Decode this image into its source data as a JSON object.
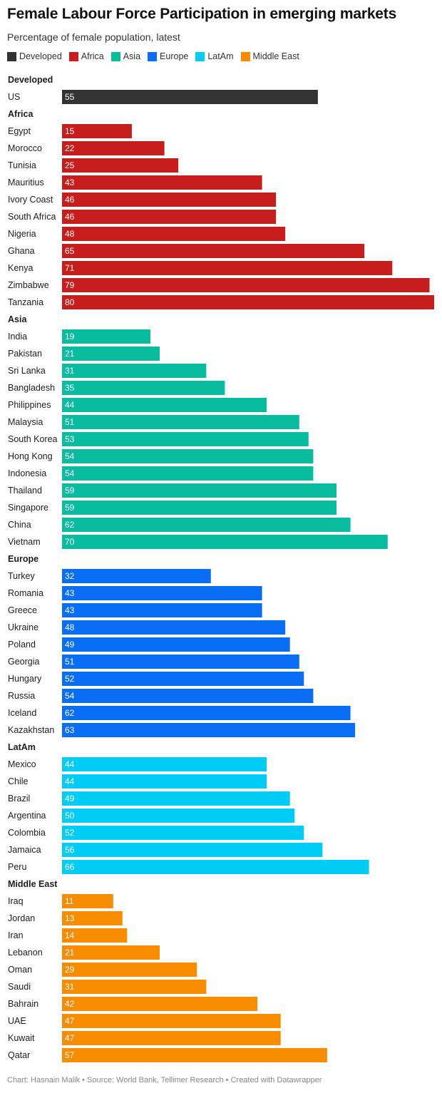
{
  "title": "Female Labour Force Participation in emerging markets",
  "subtitle": "Percentage of female population, latest",
  "footer": "Chart: Hasnain Malik • Source: World Bank, Tellimer Research • Created with Datawrapper",
  "legend": [
    {
      "name": "Developed",
      "color": "#333333"
    },
    {
      "name": "Africa",
      "color": "#c71e1d"
    },
    {
      "name": "Asia",
      "color": "#09bb9f"
    },
    {
      "name": "Europe",
      "color": "#0a6ef5"
    },
    {
      "name": "LatAm",
      "color": "#00ccf5"
    },
    {
      "name": "Middle East",
      "color": "#f78c00"
    }
  ],
  "chart_data": {
    "type": "bar",
    "orientation": "horizontal",
    "xlim": [
      0,
      80
    ],
    "grid": false,
    "legend_position": "top-left",
    "groups": [
      {
        "name": "Developed",
        "color": "#333333",
        "rows": [
          {
            "label": "US",
            "value": 55
          }
        ]
      },
      {
        "name": "Africa",
        "color": "#c71e1d",
        "rows": [
          {
            "label": "Egypt",
            "value": 15
          },
          {
            "label": "Morocco",
            "value": 22
          },
          {
            "label": "Tunisia",
            "value": 25
          },
          {
            "label": "Mauritius",
            "value": 43
          },
          {
            "label": "Ivory Coast",
            "value": 46
          },
          {
            "label": "South Africa",
            "value": 46
          },
          {
            "label": "Nigeria",
            "value": 48
          },
          {
            "label": "Ghana",
            "value": 65
          },
          {
            "label": "Kenya",
            "value": 71
          },
          {
            "label": "Zimbabwe",
            "value": 79
          },
          {
            "label": "Tanzania",
            "value": 80
          }
        ]
      },
      {
        "name": "Asia",
        "color": "#09bb9f",
        "rows": [
          {
            "label": "India",
            "value": 19
          },
          {
            "label": "Pakistan",
            "value": 21
          },
          {
            "label": "Sri Lanka",
            "value": 31
          },
          {
            "label": "Bangladesh",
            "value": 35
          },
          {
            "label": "Philippines",
            "value": 44
          },
          {
            "label": "Malaysia",
            "value": 51
          },
          {
            "label": "South Korea",
            "value": 53
          },
          {
            "label": "Hong Kong",
            "value": 54
          },
          {
            "label": "Indonesia",
            "value": 54
          },
          {
            "label": "Thailand",
            "value": 59
          },
          {
            "label": "Singapore",
            "value": 59
          },
          {
            "label": "China",
            "value": 62
          },
          {
            "label": "Vietnam",
            "value": 70
          }
        ]
      },
      {
        "name": "Europe",
        "color": "#0a6ef5",
        "rows": [
          {
            "label": "Turkey",
            "value": 32
          },
          {
            "label": "Romania",
            "value": 43
          },
          {
            "label": "Greece",
            "value": 43
          },
          {
            "label": "Ukraine",
            "value": 48
          },
          {
            "label": "Poland",
            "value": 49
          },
          {
            "label": "Georgia",
            "value": 51
          },
          {
            "label": "Hungary",
            "value": 52
          },
          {
            "label": "Russia",
            "value": 54
          },
          {
            "label": "Iceland",
            "value": 62
          },
          {
            "label": "Kazakhstan",
            "value": 63
          }
        ]
      },
      {
        "name": "LatAm",
        "color": "#00ccf5",
        "rows": [
          {
            "label": "Mexico",
            "value": 44
          },
          {
            "label": "Chile",
            "value": 44
          },
          {
            "label": "Brazil",
            "value": 49
          },
          {
            "label": "Argentina",
            "value": 50
          },
          {
            "label": "Colombia",
            "value": 52
          },
          {
            "label": "Jamaica",
            "value": 56
          },
          {
            "label": "Peru",
            "value": 66
          }
        ]
      },
      {
        "name": "Middle East",
        "color": "#f78c00",
        "rows": [
          {
            "label": "Iraq",
            "value": 11
          },
          {
            "label": "Jordan",
            "value": 13
          },
          {
            "label": "Iran",
            "value": 14
          },
          {
            "label": "Lebanon",
            "value": 21
          },
          {
            "label": "Oman",
            "value": 29
          },
          {
            "label": "Saudi",
            "value": 31
          },
          {
            "label": "Bahrain",
            "value": 42
          },
          {
            "label": "UAE",
            "value": 47
          },
          {
            "label": "Kuwait",
            "value": 47
          },
          {
            "label": "Qatar",
            "value": 57
          }
        ]
      }
    ]
  }
}
